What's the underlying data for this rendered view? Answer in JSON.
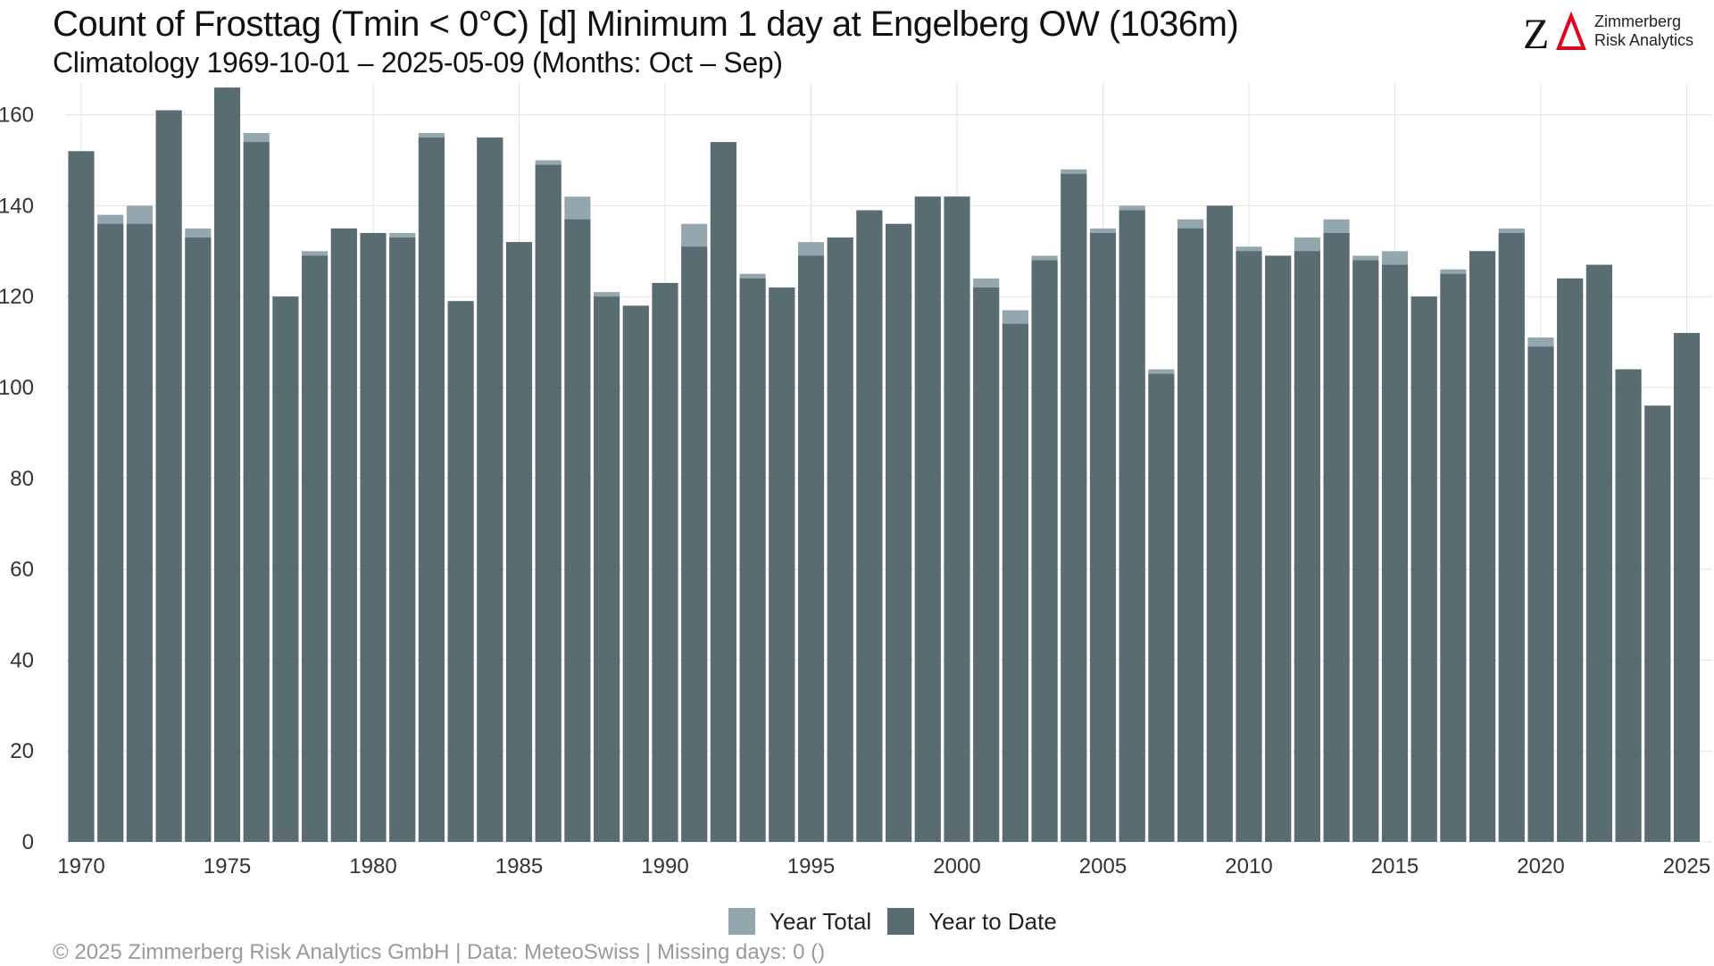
{
  "title": "Count of Frosttag (Tmin < 0°C) [d] Minimum 1 day at Engelberg  OW (1036m)",
  "subtitle": "Climatology 1969-10-01 – 2025-05-09 (Months: Oct – Sep)",
  "logo": {
    "mark": "ZΔ",
    "line1": "Zimmerberg",
    "line2": "Risk Analytics"
  },
  "footer": "©  2025 Zimmerberg Risk Analytics GmbH | Data: MeteoSwiss | Missing days: 0 ()",
  "colors": {
    "year_total": "#94a7ae",
    "year_to_date": "#586c72",
    "grid": "#e3e3e3",
    "logo_red": "#e3001b"
  },
  "chart_data": {
    "type": "bar",
    "x": [
      1970,
      1971,
      1972,
      1973,
      1974,
      1975,
      1976,
      1977,
      1978,
      1979,
      1980,
      1981,
      1982,
      1983,
      1984,
      1985,
      1986,
      1987,
      1988,
      1989,
      1990,
      1991,
      1992,
      1993,
      1994,
      1995,
      1996,
      1997,
      1998,
      1999,
      2000,
      2001,
      2002,
      2003,
      2004,
      2005,
      2006,
      2007,
      2008,
      2009,
      2010,
      2011,
      2012,
      2013,
      2014,
      2015,
      2016,
      2017,
      2018,
      2019,
      2020,
      2021,
      2022,
      2023,
      2024,
      2025
    ],
    "series": [
      {
        "name": "Year Total",
        "values": [
          152,
          138,
          140,
          161,
          135,
          166,
          156,
          120,
          130,
          135,
          134,
          134,
          156,
          119,
          155,
          132,
          150,
          142,
          121,
          118,
          123,
          136,
          154,
          125,
          122,
          132,
          133,
          139,
          136,
          142,
          142,
          124,
          117,
          129,
          148,
          135,
          140,
          104,
          137,
          140,
          131,
          129,
          133,
          137,
          129,
          130,
          120,
          126,
          130,
          135,
          111,
          124,
          127,
          104,
          96,
          112
        ]
      },
      {
        "name": "Year to Date",
        "values": [
          152,
          136,
          136,
          161,
          133,
          166,
          154,
          120,
          129,
          135,
          134,
          133,
          155,
          119,
          155,
          132,
          149,
          137,
          120,
          118,
          123,
          131,
          154,
          124,
          122,
          129,
          133,
          139,
          136,
          142,
          142,
          122,
          114,
          128,
          147,
          134,
          139,
          103,
          135,
          140,
          130,
          129,
          130,
          134,
          128,
          127,
          120,
          125,
          130,
          134,
          109,
          124,
          127,
          104,
          96,
          112
        ]
      }
    ],
    "xticks": [
      "1970",
      "1975",
      "1980",
      "1985",
      "1990",
      "1995",
      "2000",
      "2005",
      "2010",
      "2015",
      "2020",
      "2025"
    ],
    "yticks": [
      "0",
      "20",
      "40",
      "60",
      "80",
      "100",
      "120",
      "140",
      "160"
    ],
    "ylim": [
      0,
      167
    ],
    "xlabel": "",
    "ylabel": "",
    "grid": true,
    "legend_position": "bottom"
  }
}
